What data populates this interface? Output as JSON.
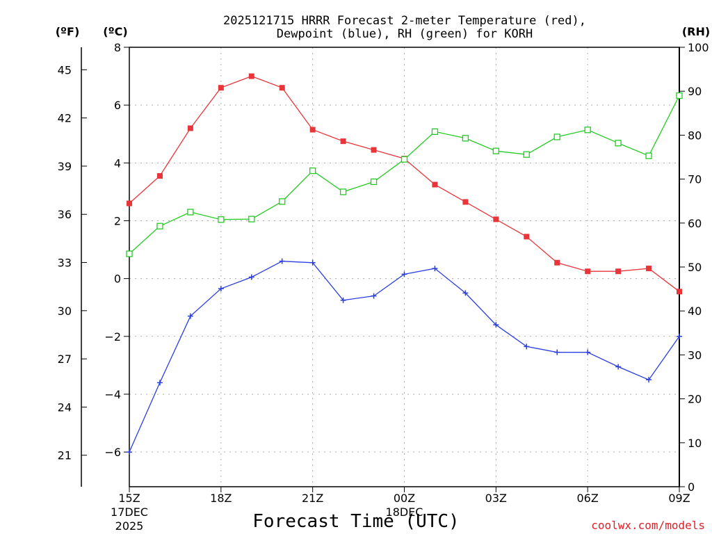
{
  "chart_data": {
    "type": "line",
    "title_line1": "2025121715 HRRR Forecast 2-meter Temperature (red),",
    "title_line2": "Dewpoint (blue), RH (green) for KORH",
    "xlabel": "Forecast Time (UTC)",
    "credit": "coolwx.com/models",
    "unit_f": "(ºF)",
    "unit_c": "(ºC)",
    "unit_rh": "(RH)",
    "ylim_c": [
      -7.2,
      8
    ],
    "ylim_rh": [
      0,
      100
    ],
    "x_count": 19,
    "x_ticks": [
      {
        "index": 0,
        "label": "15Z",
        "sub1": "17DEC",
        "sub2": "2025"
      },
      {
        "index": 3,
        "label": "18Z",
        "sub1": "",
        "sub2": ""
      },
      {
        "index": 6,
        "label": "21Z",
        "sub1": "",
        "sub2": ""
      },
      {
        "index": 9,
        "label": "00Z",
        "sub1": "18DEC",
        "sub2": ""
      },
      {
        "index": 12,
        "label": "03Z",
        "sub1": "",
        "sub2": ""
      },
      {
        "index": 15,
        "label": "06Z",
        "sub1": "",
        "sub2": ""
      },
      {
        "index": 18,
        "label": "09Z",
        "sub1": "",
        "sub2": ""
      }
    ],
    "c_ticks": [
      {
        "value": 8,
        "label": "8"
      },
      {
        "value": 6,
        "label": "6"
      },
      {
        "value": 4,
        "label": "4"
      },
      {
        "value": 2,
        "label": "2"
      },
      {
        "value": 0,
        "label": "0"
      },
      {
        "value": -2,
        "label": "−2"
      },
      {
        "value": -4,
        "label": "−4"
      },
      {
        "value": -6,
        "label": "−6"
      }
    ],
    "f_ticks": [
      {
        "value": 45,
        "label": "45"
      },
      {
        "value": 42,
        "label": "42"
      },
      {
        "value": 39,
        "label": "39"
      },
      {
        "value": 36,
        "label": "36"
      },
      {
        "value": 33,
        "label": "33"
      },
      {
        "value": 30,
        "label": "30"
      },
      {
        "value": 27,
        "label": "27"
      },
      {
        "value": 24,
        "label": "24"
      },
      {
        "value": 21,
        "label": "21"
      }
    ],
    "rh_ticks": [
      {
        "value": 100,
        "label": "100"
      },
      {
        "value": 90,
        "label": "90"
      },
      {
        "value": 80,
        "label": "80"
      },
      {
        "value": 70,
        "label": "70"
      },
      {
        "value": 60,
        "label": "60"
      },
      {
        "value": 50,
        "label": "50"
      },
      {
        "value": 40,
        "label": "40"
      },
      {
        "value": 30,
        "label": "30"
      },
      {
        "value": 20,
        "label": "20"
      },
      {
        "value": 10,
        "label": "10"
      },
      {
        "value": 0,
        "label": "0"
      }
    ],
    "series": [
      {
        "name": "Temperature",
        "axis": "c",
        "color": "#e8353a",
        "marker": "filled-square",
        "values": [
          2.6,
          3.55,
          5.2,
          6.6,
          7.0,
          6.6,
          5.15,
          4.75,
          4.45,
          4.15,
          3.25,
          2.65,
          2.05,
          1.45,
          0.55,
          0.25,
          0.25,
          0.35,
          -0.45
        ]
      },
      {
        "name": "Dewpoint",
        "axis": "c",
        "color": "#2a3fe0",
        "marker": "plus",
        "values": [
          -6.0,
          -3.6,
          -1.3,
          -0.35,
          0.05,
          0.6,
          0.55,
          -0.75,
          -0.6,
          0.15,
          0.35,
          -0.5,
          -1.6,
          -2.35,
          -2.55,
          -2.55,
          -3.05,
          -3.5,
          -2.0
        ]
      },
      {
        "name": "RH",
        "axis": "rh",
        "color": "#22cc22",
        "marker": "open-square",
        "values": [
          53,
          59.3,
          62.5,
          60.8,
          60.9,
          64.9,
          71.9,
          67.1,
          69.4,
          74.5,
          80.8,
          79.3,
          76.4,
          75.6,
          79.6,
          81.2,
          78.2,
          75.3,
          89
        ]
      }
    ]
  }
}
